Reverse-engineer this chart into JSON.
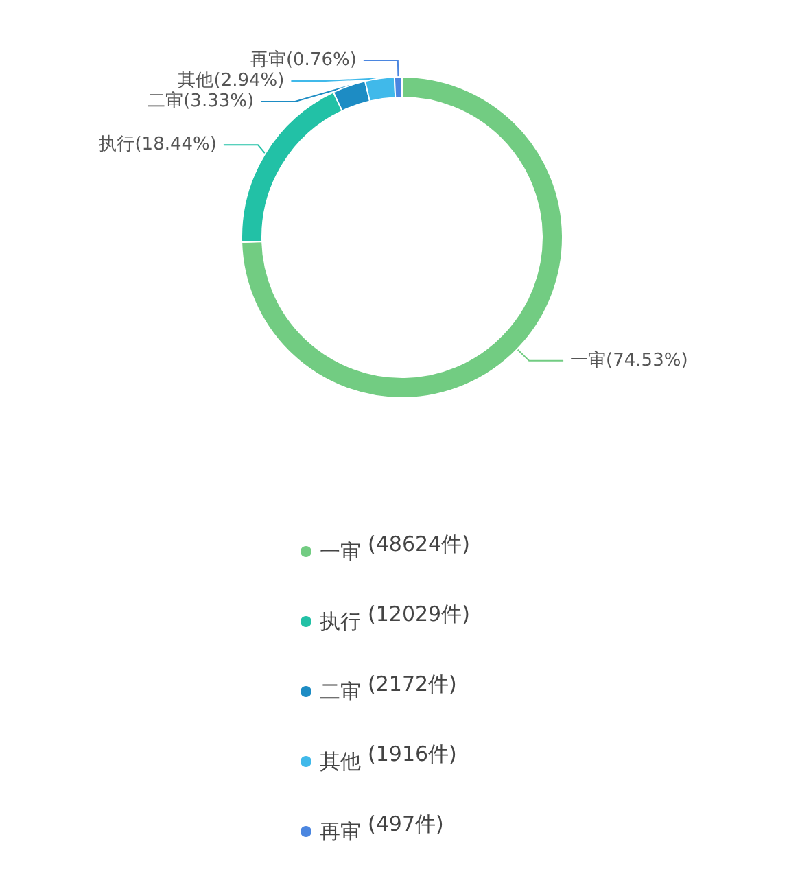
{
  "chart_data": {
    "type": "donut",
    "categories": [
      "一审",
      "执行",
      "二审",
      "其他",
      "再审"
    ],
    "values": [
      74.53,
      18.44,
      3.33,
      2.94,
      0.76
    ],
    "colors": [
      "#72cc82",
      "#22c1a6",
      "#1d8cc4",
      "#40b9ea",
      "#4b86e0"
    ],
    "value_labels": [
      "(74.53%)",
      "(18.44%)",
      "(3.33%)",
      "(2.94%)",
      "(0.76%)"
    ],
    "annotations": [
      "(48624件)",
      "(12029件)",
      "(2172件)",
      "(1916件)",
      "(497件)"
    ],
    "legend": "bottom"
  }
}
